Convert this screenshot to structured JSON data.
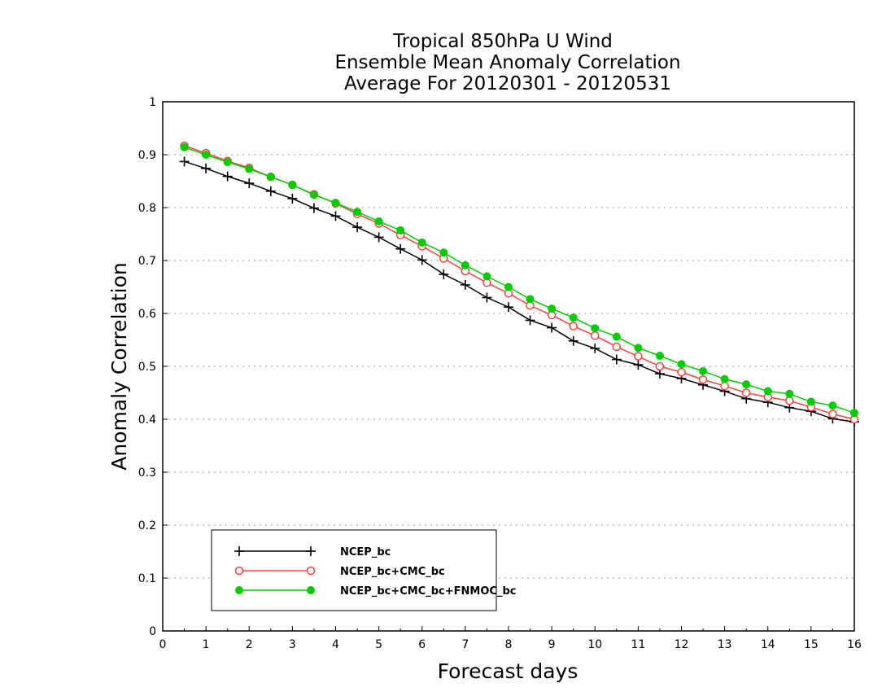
{
  "chart_data": {
    "type": "line",
    "title": [
      "Tropical 850hPa U Wind",
      "Ensemble Mean Anomaly Correlation",
      "Average For 20120301 - 20120531"
    ],
    "xlabel": "Forecast days",
    "ylabel": "Anomaly Correlation",
    "xlim": [
      0,
      16
    ],
    "ylim": [
      0,
      1
    ],
    "xticks": [
      "0",
      "1",
      "2",
      "3",
      "4",
      "5",
      "6",
      "7",
      "8",
      "9",
      "10",
      "11",
      "12",
      "13",
      "14",
      "15",
      "16"
    ],
    "yticks": [
      "0",
      "0.1",
      "0.2",
      "0.3",
      "0.4",
      "0.5",
      "0.6",
      "0.7",
      "0.8",
      "0.9",
      "1"
    ],
    "grid": "horizontal dotted",
    "legend_position": "bottom-left",
    "x": [
      0.5,
      1,
      1.5,
      2,
      2.5,
      3,
      3.5,
      4,
      4.5,
      5,
      5.5,
      6,
      6.5,
      7,
      7.5,
      8,
      8.5,
      9,
      9.5,
      10,
      10.5,
      11,
      11.5,
      12,
      12.5,
      13,
      13.5,
      14,
      14.5,
      15,
      15.5,
      16
    ],
    "series": [
      {
        "name": "NCEP_bc",
        "color": "#000000",
        "marker": "plus",
        "values": [
          0.887,
          0.874,
          0.859,
          0.846,
          0.831,
          0.817,
          0.799,
          0.784,
          0.763,
          0.744,
          0.722,
          0.701,
          0.674,
          0.654,
          0.63,
          0.612,
          0.587,
          0.573,
          0.548,
          0.534,
          0.513,
          0.503,
          0.486,
          0.477,
          0.465,
          0.453,
          0.439,
          0.432,
          0.422,
          0.415,
          0.401,
          0.395
        ]
      },
      {
        "name": "NCEP_bc+CMC_bc",
        "color": "#ff4040",
        "marker": "open-circle",
        "values": [
          0.917,
          0.903,
          0.888,
          0.875,
          0.858,
          0.843,
          0.825,
          0.808,
          0.788,
          0.77,
          0.748,
          0.727,
          0.704,
          0.68,
          0.658,
          0.638,
          0.615,
          0.597,
          0.576,
          0.558,
          0.537,
          0.519,
          0.5,
          0.489,
          0.475,
          0.463,
          0.45,
          0.442,
          0.435,
          0.423,
          0.41,
          0.4
        ]
      },
      {
        "name": "NCEP_bc+CMC_bc+FNMOC_bc",
        "color": "#00cc00",
        "marker": "filled-circle",
        "values": [
          0.914,
          0.9,
          0.886,
          0.873,
          0.858,
          0.843,
          0.824,
          0.809,
          0.792,
          0.774,
          0.757,
          0.734,
          0.715,
          0.691,
          0.67,
          0.65,
          0.627,
          0.609,
          0.592,
          0.572,
          0.556,
          0.535,
          0.52,
          0.504,
          0.491,
          0.476,
          0.466,
          0.453,
          0.448,
          0.433,
          0.426,
          0.412
        ]
      }
    ]
  }
}
